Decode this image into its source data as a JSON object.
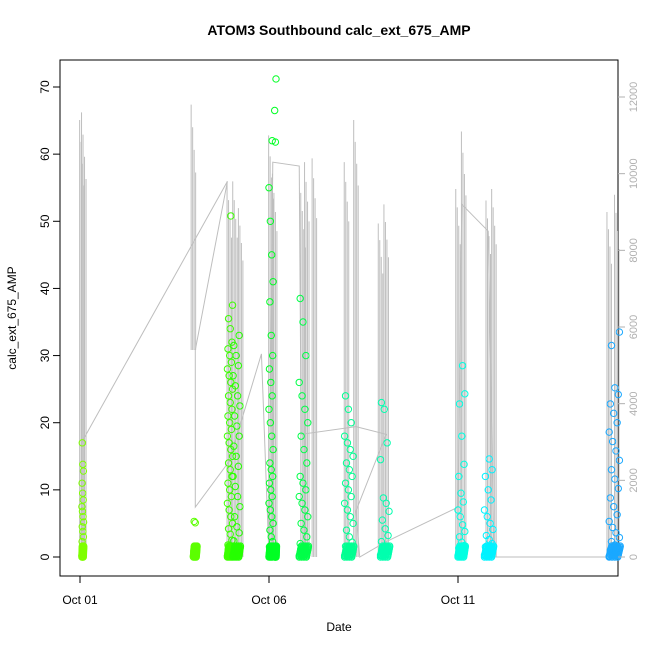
{
  "chart_data": {
    "type": "scatter",
    "title": "ATOM3 Southbound calc_ext_675_AMP",
    "xlabel": "Date",
    "ylabel": "calc_ext_675_AMP",
    "x_ticks": [
      "Oct 01",
      "Oct 06",
      "Oct 11"
    ],
    "y_ticks": [
      0,
      10,
      20,
      30,
      40,
      50,
      60,
      70
    ],
    "y_right_ticks": [
      0,
      2000,
      4000,
      6000,
      8000,
      10000,
      12000
    ],
    "ylim": [
      0,
      72
    ],
    "y_right_lim": [
      0,
      12500
    ],
    "xlim_days": [
      0.6,
      15.2
    ],
    "colors": {
      "gray_line": "#bebebe",
      "right_axis": "#b0b0b0"
    },
    "series": [
      {
        "time_days": [
          0.0,
          3.0,
          4.0,
          5.0,
          6.0,
          7.0,
          8.0,
          9.2,
          10.0,
          11.0,
          11.8,
          12.8,
          13.8,
          14.0,
          14.5,
          15.0
        ],
        "color": "#7CFC00"
      }
    ],
    "clusters": [
      {
        "x": 0.05,
        "w": 0.05,
        "pts": [
          0.2,
          0.8,
          1.5,
          2.3,
          3,
          3.8,
          4.5,
          5.2,
          6,
          6.8,
          7.5,
          8.5,
          9.5,
          11,
          12.8,
          13.8,
          17
        ],
        "color": "#7fff00"
      },
      {
        "x": 3.0,
        "w": 0.1,
        "pts": [
          0.1,
          0.3,
          0.6,
          0.9,
          1.2,
          5.1,
          5.3
        ],
        "color": "#5cff00"
      },
      {
        "x": 3.9,
        "w": 0.15,
        "pts": [
          0.2,
          0.5,
          1,
          1.8,
          2.5,
          3.4,
          4.2,
          5,
          6,
          7,
          8,
          9,
          10,
          11,
          12,
          13,
          14,
          15,
          16,
          17,
          18,
          19,
          20,
          21,
          22,
          23,
          24,
          25,
          26,
          27,
          28,
          29,
          30,
          31,
          32,
          34,
          35.5,
          37.5,
          50.8
        ],
        "color": "#3cff00"
      },
      {
        "x": 4.05,
        "w": 0.2,
        "pts": [
          0.3,
          0.8,
          1.5,
          2.4,
          3.6,
          4.5,
          6,
          7.5,
          9,
          10.5,
          12,
          13.5,
          15,
          16.5,
          18,
          19.5,
          21,
          22.5,
          24,
          25.5,
          27,
          28.5,
          30,
          31.5,
          33
        ],
        "color": "#26ff00"
      },
      {
        "x": 5.0,
        "w": 0.12,
        "pts": [
          0.1,
          0.4,
          0.8,
          1.5,
          2.3,
          3,
          4,
          5,
          6,
          7,
          8,
          9,
          10,
          11,
          12,
          13,
          14,
          16,
          18,
          20,
          22,
          24,
          26,
          28,
          30,
          33,
          38,
          41,
          45,
          50,
          55,
          62
        ],
        "color": "#00ff24"
      },
      {
        "x": 5.15,
        "w": 0.05,
        "pts": [
          66.5,
          71.2,
          61.8
        ],
        "color": "#00ff24"
      },
      {
        "x": 5.8,
        "w": 0.25,
        "pts": [
          0.2,
          0.6,
          1.2,
          2,
          3,
          4,
          5,
          6,
          7,
          8,
          9,
          10,
          11,
          12,
          14,
          16,
          18,
          20,
          22,
          24,
          26,
          30,
          35,
          38.5
        ],
        "color": "#00ff48"
      },
      {
        "x": 7.0,
        "w": 0.25,
        "pts": [
          0.2,
          0.5,
          1,
          1.6,
          2.2,
          3,
          4,
          5,
          6,
          7,
          8,
          9,
          10,
          11,
          12,
          13,
          14,
          15,
          16,
          17,
          18,
          20,
          22,
          24
        ],
        "color": "#00ff92"
      },
      {
        "x": 7.95,
        "w": 0.25,
        "pts": [
          0.3,
          0.8,
          1.5,
          2.3,
          3.2,
          4.2,
          5.5,
          6.8,
          8,
          8.8,
          14.5,
          17,
          22,
          23
        ],
        "color": "#00ffae"
      },
      {
        "x": 10.0,
        "w": 0.2,
        "pts": [
          0.2,
          0.5,
          0.9,
          1.3,
          1.7,
          2.2,
          3,
          3.8,
          4.8,
          6,
          7,
          8.2,
          9.5,
          12,
          13.8,
          18,
          22.8,
          24.3,
          28.5
        ],
        "color": "#00ffe2"
      },
      {
        "x": 10.7,
        "w": 0.25,
        "pts": [
          0.3,
          0.7,
          1.1,
          1.5,
          2,
          2.6,
          3.2,
          4.1,
          5,
          6,
          7,
          8.5,
          10,
          12,
          13,
          14.6
        ],
        "color": "#00f2ff"
      },
      {
        "x": 14.0,
        "w": 0.3,
        "pts": [
          0.1,
          0.3,
          0.6,
          1,
          1.4,
          1.8,
          2.3,
          2.9,
          3.6,
          4.4,
          5.3,
          6.3,
          7.5,
          8.8,
          10.2,
          11.6,
          13,
          14.4,
          15.8,
          17.2,
          18.6,
          20,
          21.4,
          22.8,
          24.2,
          25.2,
          31.5,
          33.5
        ],
        "color": "#1aa8ff"
      }
    ],
    "line_segments_right_axis": [
      {
        "x": 0.05,
        "top": 11400,
        "bottom": 0
      },
      {
        "x": 0.1,
        "top": 11600,
        "bottom": 0
      },
      {
        "x": 3.0,
        "top": 11800,
        "bottom": 5400
      },
      {
        "x": 3.95,
        "top": 9800,
        "bottom": 0
      },
      {
        "x": 4.1,
        "top": 9800,
        "bottom": 0
      },
      {
        "x": 4.25,
        "top": 9100,
        "bottom": 0
      },
      {
        "x": 5.05,
        "top": 11000,
        "bottom": 0
      },
      {
        "x": 5.15,
        "top": 10000,
        "bottom": 0
      },
      {
        "x": 5.9,
        "top": 9500,
        "bottom": 0
      },
      {
        "x": 6.0,
        "top": 10300,
        "bottom": 0
      },
      {
        "x": 6.2,
        "top": 10400,
        "bottom": 0
      },
      {
        "x": 7.05,
        "top": 10300,
        "bottom": 0
      },
      {
        "x": 7.3,
        "top": 11400,
        "bottom": 0
      },
      {
        "x": 7.95,
        "top": 8700,
        "bottom": 0
      },
      {
        "x": 8.1,
        "top": 9200,
        "bottom": 0
      },
      {
        "x": 10.0,
        "top": 9600,
        "bottom": 0
      },
      {
        "x": 10.15,
        "top": 11100,
        "bottom": 0
      },
      {
        "x": 10.8,
        "top": 9300,
        "bottom": 0
      },
      {
        "x": 10.95,
        "top": 9600,
        "bottom": 0
      },
      {
        "x": 14.0,
        "top": 9000,
        "bottom": 0
      },
      {
        "x": 14.2,
        "top": 9450,
        "bottom": 0
      }
    ],
    "connector_path_right_axis": [
      [
        0.05,
        3000
      ],
      [
        3.9,
        9800
      ],
      [
        3.05,
        5400
      ],
      [
        3.05,
        1300
      ],
      [
        3.95,
        2500
      ],
      [
        4.8,
        5300
      ],
      [
        5.0,
        0
      ],
      [
        5.1,
        10300
      ],
      [
        5.8,
        10200
      ],
      [
        5.85,
        3200
      ],
      [
        7.3,
        3400
      ],
      [
        8.1,
        3200
      ],
      [
        7.3,
        1200
      ],
      [
        7.4,
        0
      ],
      [
        8.1,
        400
      ],
      [
        10.0,
        1300
      ],
      [
        10.1,
        9200
      ],
      [
        10.8,
        8500
      ],
      [
        10.95,
        0
      ],
      [
        14.0,
        0
      ],
      [
        14.3,
        0
      ]
    ]
  }
}
